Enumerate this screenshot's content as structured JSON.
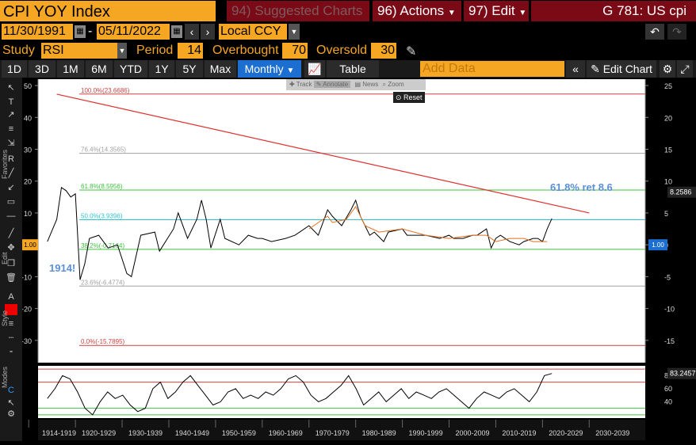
{
  "header": {
    "ticker": "CPI YOY Index",
    "suggested": "94) Suggested Charts",
    "actions": "96) Actions",
    "edit": "97) Edit",
    "g_label": "G 781: US cpi"
  },
  "dates": {
    "start": "11/30/1991",
    "separator": "-",
    "end": "05/11/2022",
    "currency": "Local CCY"
  },
  "study": {
    "study_label": "Study",
    "study_value": "RSI",
    "period_label": "Period",
    "period_value": "14",
    "overbought_label": "Overbought",
    "overbought_value": "70",
    "oversold_label": "Oversold",
    "oversold_value": "30"
  },
  "toolbar": {
    "ranges": [
      "1D",
      "3D",
      "1M",
      "6M",
      "YTD",
      "1Y",
      "5Y",
      "Max"
    ],
    "frequency": "Monthly",
    "table": "Table",
    "add_data_placeholder": "Add Data",
    "edit_chart": "Edit Chart"
  },
  "mini_toolbar": {
    "items": [
      "Track",
      "Annotate",
      "News",
      "Zoom"
    ],
    "reset": "Reset"
  },
  "sidebar": {
    "favorites": "Favorites",
    "edit": "Edit",
    "style": "Style",
    "modes": "Modes"
  },
  "colors": {
    "orange": "#f5a623",
    "header_red": "#7a0a16",
    "price_line": "#000000",
    "trend_line": "#e03030",
    "orange_series": "#e07020",
    "fib_red": "#d04040",
    "fib_green": "#40c040",
    "fib_cyan": "#30c0d0",
    "fib_grey": "#a0a0a0",
    "highlight_blue": "#5b8fd6"
  },
  "chart_data": {
    "type": "line",
    "series": [
      {
        "name": "CPI YOY Index",
        "x": [
          1914,
          1916,
          1917,
          1918,
          1919,
          1920,
          1921,
          1922,
          1923,
          1925,
          1927,
          1929,
          1931,
          1932,
          1934,
          1937,
          1938,
          1941,
          1942,
          1944,
          1946,
          1947,
          1948,
          1949,
          1951,
          1952,
          1955,
          1957,
          1959,
          1960,
          1962,
          1965,
          1967,
          1969,
          1970,
          1972,
          1974,
          1975,
          1977,
          1979,
          1980,
          1981,
          1983,
          1984,
          1986,
          1987,
          1990,
          1991,
          1993,
          1995,
          1998,
          2000,
          2001,
          2003,
          2005,
          2006,
          2008,
          2009,
          2010,
          2011,
          2013,
          2015,
          2016,
          2018,
          2019,
          2020,
          2021,
          2022
        ],
        "y": [
          1,
          8,
          18,
          17,
          15,
          16,
          -11,
          -6,
          2,
          3,
          -1,
          0,
          -9,
          -10,
          3,
          4,
          -2,
          5,
          10,
          2,
          8,
          14,
          8,
          -1,
          8,
          2,
          0,
          3,
          2,
          2,
          1,
          2,
          3,
          5,
          6,
          3,
          11,
          9,
          6,
          11,
          14,
          9,
          3,
          4,
          1,
          4,
          5,
          3,
          3,
          3,
          2,
          3,
          2,
          2,
          3,
          3,
          5,
          -1,
          2,
          3,
          1,
          0,
          1,
          2,
          2,
          1,
          5,
          8.2586
        ]
      },
      {
        "name": "Overlay",
        "x": [
          1970,
          1974,
          1975,
          1978,
          1980,
          1982,
          1985,
          1990,
          1995,
          2000,
          2005,
          2008,
          2010,
          2013,
          2016,
          2018,
          2020,
          2021
        ],
        "y": [
          5,
          9,
          7,
          8,
          12,
          6,
          4,
          5,
          3,
          2,
          3,
          3,
          1,
          2,
          2,
          1,
          1,
          1
        ]
      }
    ],
    "trendline": {
      "x": [
        1916,
        2030
      ],
      "y": [
        47.3,
        10
      ]
    },
    "fib_levels": [
      {
        "label": "100.0%(23.6686)",
        "value": 23.6686
      },
      {
        "label": "76.4%(14.3565)",
        "value": 14.3565
      },
      {
        "label": "61.8%(8.5956)",
        "value": 8.5956
      },
      {
        "label": "50.0%(3.9396)",
        "value": 3.9396
      },
      {
        "label": "38.2%(-0.7164)",
        "value": -0.7164
      },
      {
        "label": "23.6%(-6.4774)",
        "value": -6.4774
      },
      {
        "label": "0.0%(-15.7895)",
        "value": -15.7895
      }
    ],
    "annotations": [
      {
        "text": "61.8% ret 8.6"
      },
      {
        "text": "1914!"
      }
    ],
    "left_axis_ticks": [
      50,
      40,
      30,
      20,
      10,
      0,
      -10,
      -20,
      -30
    ],
    "right_axis_ticks": [
      25,
      20,
      15,
      10,
      5,
      0,
      -5,
      -10,
      -15
    ],
    "last_value": "8.2586",
    "zero_marker": "1.00",
    "x_tick_labels": [
      "1914-1919",
      "1920-1929",
      "1930-1939",
      "1940-1949",
      "1950-1959",
      "1960-1969",
      "1970-1979",
      "1980-1989",
      "1990-1999",
      "2000-2009",
      "2010-2019",
      "2020-2029",
      "2030-2039"
    ],
    "rsi": {
      "last_value": "83.2457",
      "ticks": [
        80,
        60,
        40
      ],
      "overbought": 70,
      "oversold": 30,
      "values": [
        45,
        60,
        80,
        75,
        55,
        30,
        20,
        40,
        55,
        45,
        50,
        35,
        25,
        30,
        60,
        70,
        45,
        55,
        70,
        80,
        65,
        50,
        35,
        40,
        55,
        60,
        45,
        50,
        45,
        55,
        50,
        60,
        75,
        80,
        70,
        50,
        40,
        45,
        55,
        65,
        80,
        60,
        35,
        45,
        55,
        40,
        50,
        60,
        45,
        55,
        50,
        45,
        55,
        60,
        50,
        40,
        30,
        45,
        55,
        50,
        45,
        55,
        60,
        50,
        40,
        55,
        80,
        83.2457
      ]
    }
  }
}
